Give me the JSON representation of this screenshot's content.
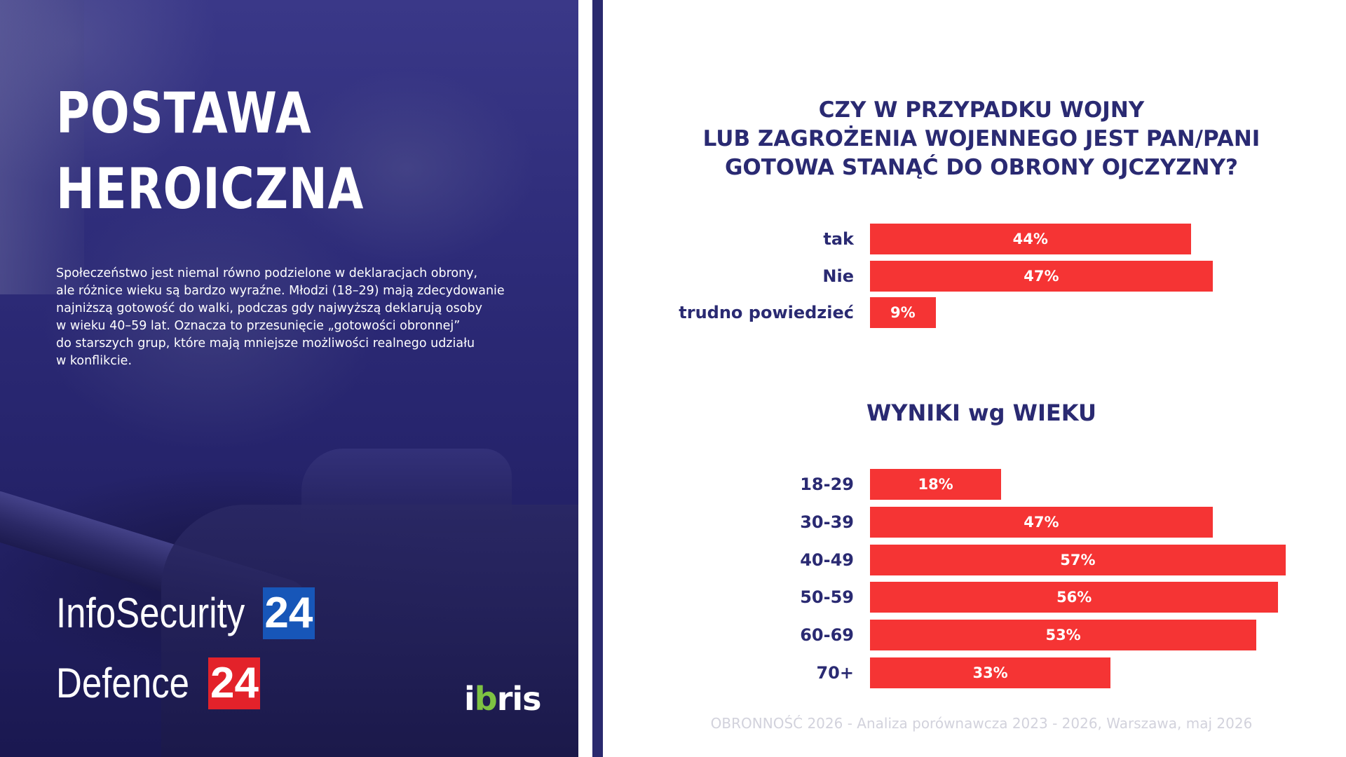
{
  "left_panel": {
    "title_lines": [
      "POSTAWA",
      "HEROICZNA"
    ],
    "description_lines": [
      "Społeczeństwo jest niemal równo podzielone w deklaracjach obrony,",
      "ale różnice wieku są bardzo wyraźne. Młodzi (18–29) mają zdecydowanie",
      "najniższą gotowość do walki, podczas gdy najwyższą deklarują osoby",
      "w wieku 40–59 lat. Oznacza to przesunięcie „gotowości obronnej”",
      "do starszych grup, które mają mniejsze możliwości realnego udziału",
      "w konflikcie."
    ],
    "logos": {
      "infosecurity": {
        "text": "InfoSecurity",
        "badge": "24",
        "badge_color": "#1756b8"
      },
      "defence": {
        "text": "Defence",
        "badge": "24",
        "badge_color": "#e3222a"
      },
      "ibris": {
        "part1": "i",
        "dot": "b",
        "part2": "ris",
        "dot_color": "#7ec242"
      }
    }
  },
  "colors": {
    "navy": "#2a2a72",
    "bar": "#f53434",
    "footer": "#d2d2dc"
  },
  "chart_data": [
    {
      "type": "bar",
      "orientation": "horizontal",
      "title_lines": [
        "CZY W PRZYPADKU WOJNY",
        "LUB ZAGROŻENIA WOJENNEGO JEST PAN/PANI",
        "GOTOWA STANĄĆ DO OBRONY OJCZYZNY?"
      ],
      "categories": [
        "tak",
        "Nie",
        "trudno powiedzieć"
      ],
      "values": [
        44,
        47,
        9
      ],
      "value_labels": [
        "44%",
        "47%",
        "9%"
      ],
      "xlim": [
        0,
        60
      ],
      "grid": false
    },
    {
      "type": "bar",
      "orientation": "horizontal",
      "title": "WYNIKI wg WIEKU",
      "categories": [
        "18-29",
        "30-39",
        "40-49",
        "50-59",
        "60-69",
        "70+"
      ],
      "values": [
        18,
        47,
        57,
        56,
        53,
        33
      ],
      "value_labels": [
        "18%",
        "47%",
        "57%",
        "56%",
        "53%",
        "33%"
      ],
      "xlim": [
        0,
        60
      ],
      "grid": false
    }
  ],
  "footer": "OBRONNOŚĆ 2026 - Analiza porównawcza 2023 - 2026, Warszawa, maj 2026"
}
